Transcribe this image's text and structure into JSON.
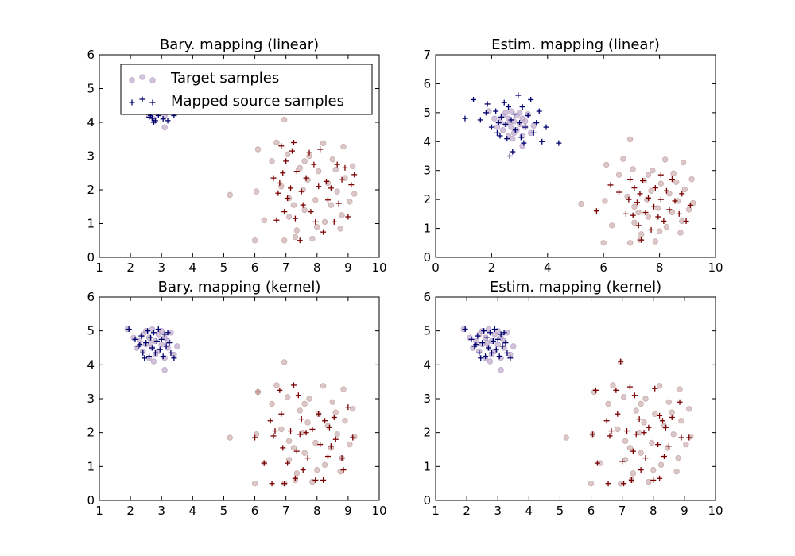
{
  "colors": {
    "target": "#b9a3c6",
    "target_red": "#c8a9a9",
    "source_blue": "#00006e",
    "source_red": "#7a0000"
  },
  "legend": {
    "target_label": "Target samples",
    "source_label": "Mapped source samples"
  },
  "target": {
    "blue": [
      [
        1.9,
        5.05
      ],
      [
        2.1,
        4.8
      ],
      [
        2.2,
        4.5
      ],
      [
        2.3,
        4.7
      ],
      [
        2.4,
        4.9
      ],
      [
        2.4,
        4.4
      ],
      [
        2.5,
        4.6
      ],
      [
        2.5,
        5.0
      ],
      [
        2.6,
        4.2
      ],
      [
        2.6,
        4.8
      ],
      [
        2.7,
        4.5
      ],
      [
        2.7,
        5.05
      ],
      [
        2.8,
        4.3
      ],
      [
        2.8,
        4.7
      ],
      [
        2.9,
        4.9
      ],
      [
        2.9,
        4.4
      ],
      [
        3.0,
        4.6
      ],
      [
        3.0,
        5.0
      ],
      [
        3.1,
        4.2
      ],
      [
        3.1,
        4.8
      ],
      [
        3.2,
        4.5
      ],
      [
        3.3,
        4.95
      ],
      [
        3.4,
        4.3
      ],
      [
        3.5,
        4.55
      ],
      [
        3.1,
        3.85
      ],
      [
        2.75,
        4.1
      ],
      [
        3.2,
        4.7
      ],
      [
        2.65,
        4.65
      ]
    ],
    "red": [
      [
        5.2,
        1.85
      ],
      [
        6.0,
        0.5
      ],
      [
        6.05,
        1.95
      ],
      [
        6.1,
        3.2
      ],
      [
        6.3,
        1.1
      ],
      [
        6.55,
        2.85
      ],
      [
        6.7,
        3.4
      ],
      [
        6.85,
        2.1
      ],
      [
        6.95,
        4.08
      ],
      [
        6.95,
        0.5
      ],
      [
        7.05,
        3.05
      ],
      [
        7.1,
        1.2
      ],
      [
        7.25,
        1.55
      ],
      [
        7.35,
        0.8
      ],
      [
        7.45,
        2.65
      ],
      [
        7.55,
        2.0
      ],
      [
        7.6,
        1.4
      ],
      [
        7.7,
        2.3
      ],
      [
        7.75,
        3.0
      ],
      [
        7.85,
        0.55
      ],
      [
        7.95,
        1.7
      ],
      [
        8.05,
        2.55
      ],
      [
        8.2,
        3.38
      ],
      [
        8.25,
        1.05
      ],
      [
        8.35,
        2.2
      ],
      [
        8.45,
        1.55
      ],
      [
        8.5,
        2.9
      ],
      [
        8.65,
        1.95
      ],
      [
        8.75,
        0.85
      ],
      [
        8.8,
        1.25
      ],
      [
        8.85,
        3.28
      ],
      [
        8.9,
        2.35
      ],
      [
        9.05,
        1.65
      ],
      [
        9.15,
        2.7
      ],
      [
        9.2,
        1.88
      ],
      [
        7.3,
        0.6
      ],
      [
        7.6,
        2.85
      ],
      [
        8.0,
        0.9
      ],
      [
        8.6,
        2.6
      ],
      [
        7.1,
        1.75
      ]
    ]
  },
  "subplots": [
    {
      "title": "Bary. mapping (linear)",
      "xlim": [
        1,
        10
      ],
      "ylim": [
        0,
        6
      ],
      "xticks": [
        1,
        2,
        3,
        4,
        5,
        6,
        7,
        8,
        9,
        10
      ],
      "yticks": [
        0,
        1,
        2,
        3,
        4,
        5,
        6
      ],
      "legend": true,
      "source_blue": [
        [
          2.6,
          4.15
        ],
        [
          2.7,
          4.12
        ],
        [
          2.8,
          4.05
        ],
        [
          2.9,
          4.2
        ],
        [
          3.05,
          4.1
        ],
        [
          3.4,
          4.2
        ],
        [
          2.65,
          4.2
        ],
        [
          2.75,
          4.0
        ],
        [
          3.2,
          4.05
        ]
      ],
      "source_red": [
        [
          6.6,
          2.35
        ],
        [
          6.75,
          1.9
        ],
        [
          6.8,
          2.2
        ],
        [
          6.85,
          3.3
        ],
        [
          6.9,
          2.5
        ],
        [
          6.95,
          1.35
        ],
        [
          7.0,
          2.85
        ],
        [
          7.05,
          1.75
        ],
        [
          7.15,
          2.05
        ],
        [
          7.25,
          3.4
        ],
        [
          7.3,
          1.15
        ],
        [
          7.35,
          2.55
        ],
        [
          7.45,
          0.5
        ],
        [
          7.5,
          1.95
        ],
        [
          7.55,
          1.55
        ],
        [
          7.65,
          2.35
        ],
        [
          7.75,
          3.1
        ],
        [
          7.8,
          1.35
        ],
        [
          7.9,
          2.75
        ],
        [
          7.95,
          1.05
        ],
        [
          8.05,
          2.1
        ],
        [
          8.1,
          3.2
        ],
        [
          8.2,
          0.75
        ],
        [
          8.3,
          2.25
        ],
        [
          8.35,
          1.7
        ],
        [
          8.45,
          2.05
        ],
        [
          8.55,
          1.05
        ],
        [
          8.65,
          2.75
        ],
        [
          8.7,
          1.6
        ],
        [
          8.8,
          2.3
        ],
        [
          8.9,
          2.65
        ],
        [
          9.0,
          1.2
        ],
        [
          9.1,
          2.15
        ],
        [
          9.2,
          2.45
        ],
        [
          6.7,
          1.1
        ],
        [
          7.2,
          3.15
        ]
      ]
    },
    {
      "title": "Estim. mapping (linear)",
      "xlim": [
        0,
        10
      ],
      "ylim": [
        0,
        7
      ],
      "xticks": [
        0,
        2,
        4,
        6,
        8,
        10
      ],
      "yticks": [
        0,
        1,
        2,
        3,
        4,
        5,
        6,
        7
      ],
      "legend": false,
      "source_blue": [
        [
          1.05,
          4.8
        ],
        [
          1.35,
          5.45
        ],
        [
          1.6,
          4.75
        ],
        [
          1.8,
          5.0
        ],
        [
          1.85,
          5.3
        ],
        [
          2.0,
          4.5
        ],
        [
          2.15,
          5.05
        ],
        [
          2.2,
          4.3
        ],
        [
          2.35,
          4.85
        ],
        [
          2.45,
          5.35
        ],
        [
          2.5,
          4.6
        ],
        [
          2.55,
          4.1
        ],
        [
          2.6,
          5.2
        ],
        [
          2.7,
          4.75
        ],
        [
          2.75,
          3.65
        ],
        [
          2.8,
          4.95
        ],
        [
          2.85,
          4.4
        ],
        [
          2.95,
          5.6
        ],
        [
          3.0,
          4.65
        ],
        [
          3.05,
          4.15
        ],
        [
          3.1,
          5.2
        ],
        [
          3.2,
          4.5
        ],
        [
          3.3,
          4.9
        ],
        [
          3.4,
          5.45
        ],
        [
          3.5,
          4.3
        ],
        [
          3.6,
          4.65
        ],
        [
          3.7,
          5.05
        ],
        [
          3.8,
          4.0
        ],
        [
          3.95,
          4.5
        ],
        [
          4.4,
          3.95
        ],
        [
          3.15,
          3.95
        ],
        [
          2.3,
          4.2
        ],
        [
          2.65,
          3.5
        ],
        [
          2.25,
          4.65
        ]
      ],
      "source_red": [
        [
          5.75,
          1.6
        ],
        [
          6.25,
          2.5
        ],
        [
          6.55,
          2.25
        ],
        [
          6.8,
          1.5
        ],
        [
          6.9,
          2.0
        ],
        [
          6.95,
          2.7
        ],
        [
          7.05,
          1.45
        ],
        [
          7.1,
          2.4
        ],
        [
          7.2,
          1.9
        ],
        [
          7.25,
          1.1
        ],
        [
          7.3,
          2.2
        ],
        [
          7.4,
          2.65
        ],
        [
          7.5,
          1.55
        ],
        [
          7.6,
          2.05
        ],
        [
          7.7,
          0.95
        ],
        [
          7.8,
          1.75
        ],
        [
          7.85,
          2.4
        ],
        [
          7.95,
          1.4
        ],
        [
          8.05,
          2.0
        ],
        [
          8.15,
          1.25
        ],
        [
          8.25,
          2.3
        ],
        [
          8.35,
          1.65
        ],
        [
          8.45,
          2.7
        ],
        [
          8.55,
          1.95
        ],
        [
          8.7,
          1.5
        ],
        [
          8.8,
          2.2
        ],
        [
          8.95,
          1.25
        ],
        [
          9.1,
          1.8
        ],
        [
          7.35,
          0.6
        ],
        [
          8.05,
          2.85
        ]
      ]
    },
    {
      "title": "Bary. mapping (kernel)",
      "xlim": [
        1,
        10
      ],
      "ylim": [
        0,
        6
      ],
      "xticks": [
        1,
        2,
        3,
        4,
        5,
        6,
        7,
        8,
        9,
        10
      ],
      "yticks": [
        0,
        1,
        2,
        3,
        4,
        5,
        6
      ],
      "legend": false,
      "source_blue": [
        [
          1.95,
          5.05
        ],
        [
          2.15,
          4.75
        ],
        [
          2.25,
          4.55
        ],
        [
          2.35,
          4.85
        ],
        [
          2.4,
          4.35
        ],
        [
          2.5,
          4.65
        ],
        [
          2.55,
          5.0
        ],
        [
          2.6,
          4.25
        ],
        [
          2.65,
          4.8
        ],
        [
          2.7,
          4.5
        ],
        [
          2.75,
          4.95
        ],
        [
          2.8,
          4.35
        ],
        [
          2.85,
          4.7
        ],
        [
          2.9,
          5.05
        ],
        [
          2.95,
          4.45
        ],
        [
          3.0,
          4.75
        ],
        [
          3.05,
          4.25
        ],
        [
          3.1,
          4.9
        ],
        [
          3.15,
          4.55
        ],
        [
          3.25,
          4.65
        ],
        [
          3.3,
          4.35
        ],
        [
          3.4,
          4.2
        ],
        [
          2.45,
          4.2
        ],
        [
          2.3,
          4.6
        ],
        [
          3.2,
          4.95
        ]
      ],
      "source_red": [
        [
          6.0,
          1.85
        ],
        [
          6.1,
          3.2
        ],
        [
          6.3,
          1.1
        ],
        [
          6.5,
          2.35
        ],
        [
          6.55,
          0.5
        ],
        [
          6.6,
          1.9
        ],
        [
          6.8,
          3.25
        ],
        [
          6.85,
          2.55
        ],
        [
          6.9,
          1.55
        ],
        [
          6.95,
          0.5
        ],
        [
          7.05,
          1.1
        ],
        [
          7.15,
          2.05
        ],
        [
          7.25,
          3.4
        ],
        [
          7.3,
          0.65
        ],
        [
          7.35,
          1.45
        ],
        [
          7.45,
          1.95
        ],
        [
          7.5,
          2.4
        ],
        [
          7.55,
          0.9
        ],
        [
          7.65,
          2.0
        ],
        [
          7.7,
          1.25
        ],
        [
          7.85,
          2.1
        ],
        [
          7.95,
          0.6
        ],
        [
          8.05,
          2.55
        ],
        [
          8.1,
          1.65
        ],
        [
          8.2,
          0.6
        ],
        [
          8.25,
          2.35
        ],
        [
          8.35,
          1.3
        ],
        [
          8.4,
          2.15
        ],
        [
          8.45,
          1.6
        ],
        [
          8.55,
          2.45
        ],
        [
          8.6,
          1.8
        ],
        [
          8.8,
          1.25
        ],
        [
          8.85,
          0.9
        ],
        [
          9.0,
          2.75
        ],
        [
          9.15,
          1.85
        ],
        [
          7.4,
          3.1
        ],
        [
          6.65,
          2.05
        ]
      ]
    },
    {
      "title": "Estim. mapping (kernel)",
      "xlim": [
        1,
        10
      ],
      "ylim": [
        0,
        6
      ],
      "xticks": [
        1,
        2,
        3,
        4,
        5,
        6,
        7,
        8,
        9,
        10
      ],
      "yticks": [
        0,
        1,
        2,
        3,
        4,
        5,
        6
      ],
      "legend": false,
      "source_blue": [
        [
          1.95,
          5.05
        ],
        [
          2.15,
          4.75
        ],
        [
          2.25,
          4.55
        ],
        [
          2.35,
          4.85
        ],
        [
          2.4,
          4.35
        ],
        [
          2.5,
          4.65
        ],
        [
          2.55,
          5.0
        ],
        [
          2.6,
          4.25
        ],
        [
          2.65,
          4.8
        ],
        [
          2.7,
          4.5
        ],
        [
          2.75,
          4.95
        ],
        [
          2.8,
          4.35
        ],
        [
          2.85,
          4.7
        ],
        [
          2.9,
          5.05
        ],
        [
          2.95,
          4.45
        ],
        [
          3.0,
          4.75
        ],
        [
          3.05,
          4.25
        ],
        [
          3.1,
          4.9
        ],
        [
          3.15,
          4.55
        ],
        [
          3.25,
          4.65
        ],
        [
          3.3,
          4.35
        ],
        [
          3.4,
          4.2
        ],
        [
          2.45,
          4.2
        ],
        [
          2.3,
          4.6
        ],
        [
          3.2,
          4.95
        ]
      ],
      "source_red": [
        [
          6.05,
          1.95
        ],
        [
          6.15,
          3.25
        ],
        [
          6.2,
          1.1
        ],
        [
          6.5,
          2.35
        ],
        [
          6.55,
          0.5
        ],
        [
          6.6,
          1.9
        ],
        [
          6.8,
          3.25
        ],
        [
          6.85,
          2.55
        ],
        [
          6.95,
          4.1
        ],
        [
          7.0,
          1.15
        ],
        [
          7.05,
          0.5
        ],
        [
          7.15,
          2.05
        ],
        [
          7.25,
          3.35
        ],
        [
          7.3,
          0.6
        ],
        [
          7.35,
          1.45
        ],
        [
          7.45,
          1.95
        ],
        [
          7.55,
          2.4
        ],
        [
          7.6,
          0.9
        ],
        [
          7.7,
          2.0
        ],
        [
          7.75,
          1.25
        ],
        [
          7.85,
          2.15
        ],
        [
          8.0,
          0.6
        ],
        [
          8.05,
          3.3
        ],
        [
          8.15,
          1.65
        ],
        [
          8.2,
          0.65
        ],
        [
          8.3,
          2.35
        ],
        [
          8.35,
          1.3
        ],
        [
          8.4,
          2.15
        ],
        [
          8.5,
          1.6
        ],
        [
          8.6,
          2.45
        ],
        [
          8.85,
          2.9
        ],
        [
          8.9,
          1.85
        ],
        [
          9.15,
          1.85
        ],
        [
          7.4,
          3.1
        ],
        [
          6.65,
          2.05
        ],
        [
          8.2,
          2.5
        ]
      ]
    }
  ],
  "chart_data": [
    {
      "type": "scatter",
      "title": "Bary. mapping (linear)",
      "xlim": [
        1,
        10
      ],
      "ylim": [
        0,
        6
      ],
      "grid": false,
      "legend": "top-left",
      "series": [
        {
          "name": "Target samples"
        },
        {
          "name": "Mapped source samples"
        }
      ]
    },
    {
      "type": "scatter",
      "title": "Estim. mapping (linear)",
      "xlim": [
        0,
        10
      ],
      "ylim": [
        0,
        7
      ],
      "grid": false
    },
    {
      "type": "scatter",
      "title": "Bary. mapping (kernel)",
      "xlim": [
        1,
        10
      ],
      "ylim": [
        0,
        6
      ],
      "grid": false
    },
    {
      "type": "scatter",
      "title": "Estim. mapping (kernel)",
      "xlim": [
        1,
        10
      ],
      "ylim": [
        0,
        6
      ],
      "grid": false
    }
  ]
}
